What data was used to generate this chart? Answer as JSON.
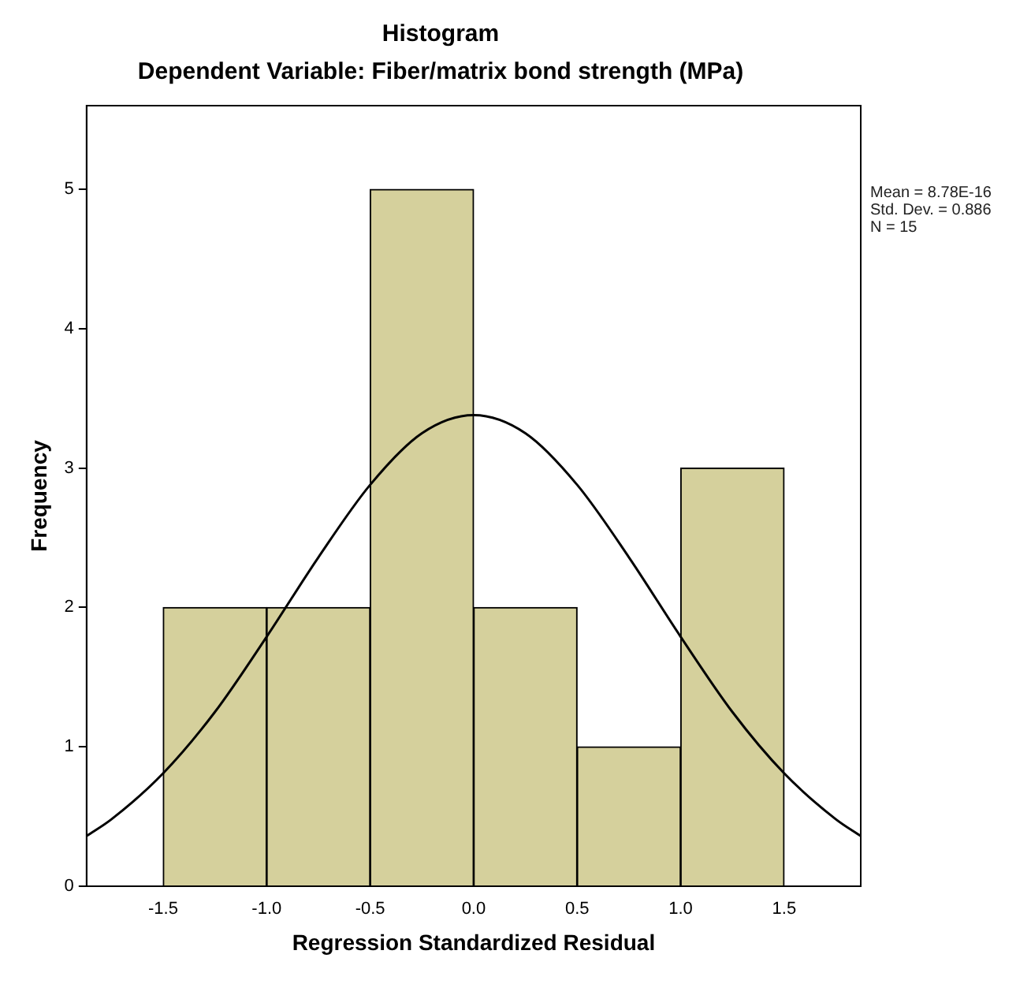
{
  "chart_data": {
    "type": "histogram",
    "title": "Histogram",
    "subtitle": "Dependent Variable: Fiber/matrix bond strength (MPa)",
    "xlabel": "Regression Standardized Residual",
    "ylabel": "Frequency",
    "bins": [
      -1.5,
      -1,
      -0.5,
      0,
      0.5,
      1,
      1.5
    ],
    "values": [
      2,
      2,
      5,
      2,
      1,
      3
    ],
    "color": "#d5d09c",
    "xlim": [
      -1.87,
      1.87
    ],
    "ylim": [
      0,
      5.6
    ],
    "xticks": [
      -1.5,
      {
        "value": -1,
        "label": "-1.0"
      },
      -0.5,
      {
        "value": 0,
        "label": "0.0"
      },
      0.5,
      {
        "value": 1,
        "label": "1.0"
      },
      1.5
    ],
    "yticks": [
      0,
      1,
      2,
      3,
      4,
      5
    ],
    "annotations": [
      "Mean = 8.78E-16",
      "Std. Dev. = 0.886",
      "N = 15"
    ],
    "series": [
      {
        "type": "line",
        "color": "#000000",
        "marker": "none",
        "x": [
          -1.87,
          -1.75,
          -1.5,
          -1.25,
          -1,
          -0.75,
          -0.5,
          -0.25,
          0,
          0.25,
          0.5,
          0.75,
          1,
          1.25,
          1.5,
          1.75,
          1.87
        ],
        "values": [
          0.36,
          0.48,
          0.81,
          1.25,
          1.79,
          2.36,
          2.88,
          3.25,
          3.38,
          3.25,
          2.88,
          2.36,
          1.79,
          1.25,
          0.81,
          0.48,
          0.36
        ]
      }
    ]
  }
}
